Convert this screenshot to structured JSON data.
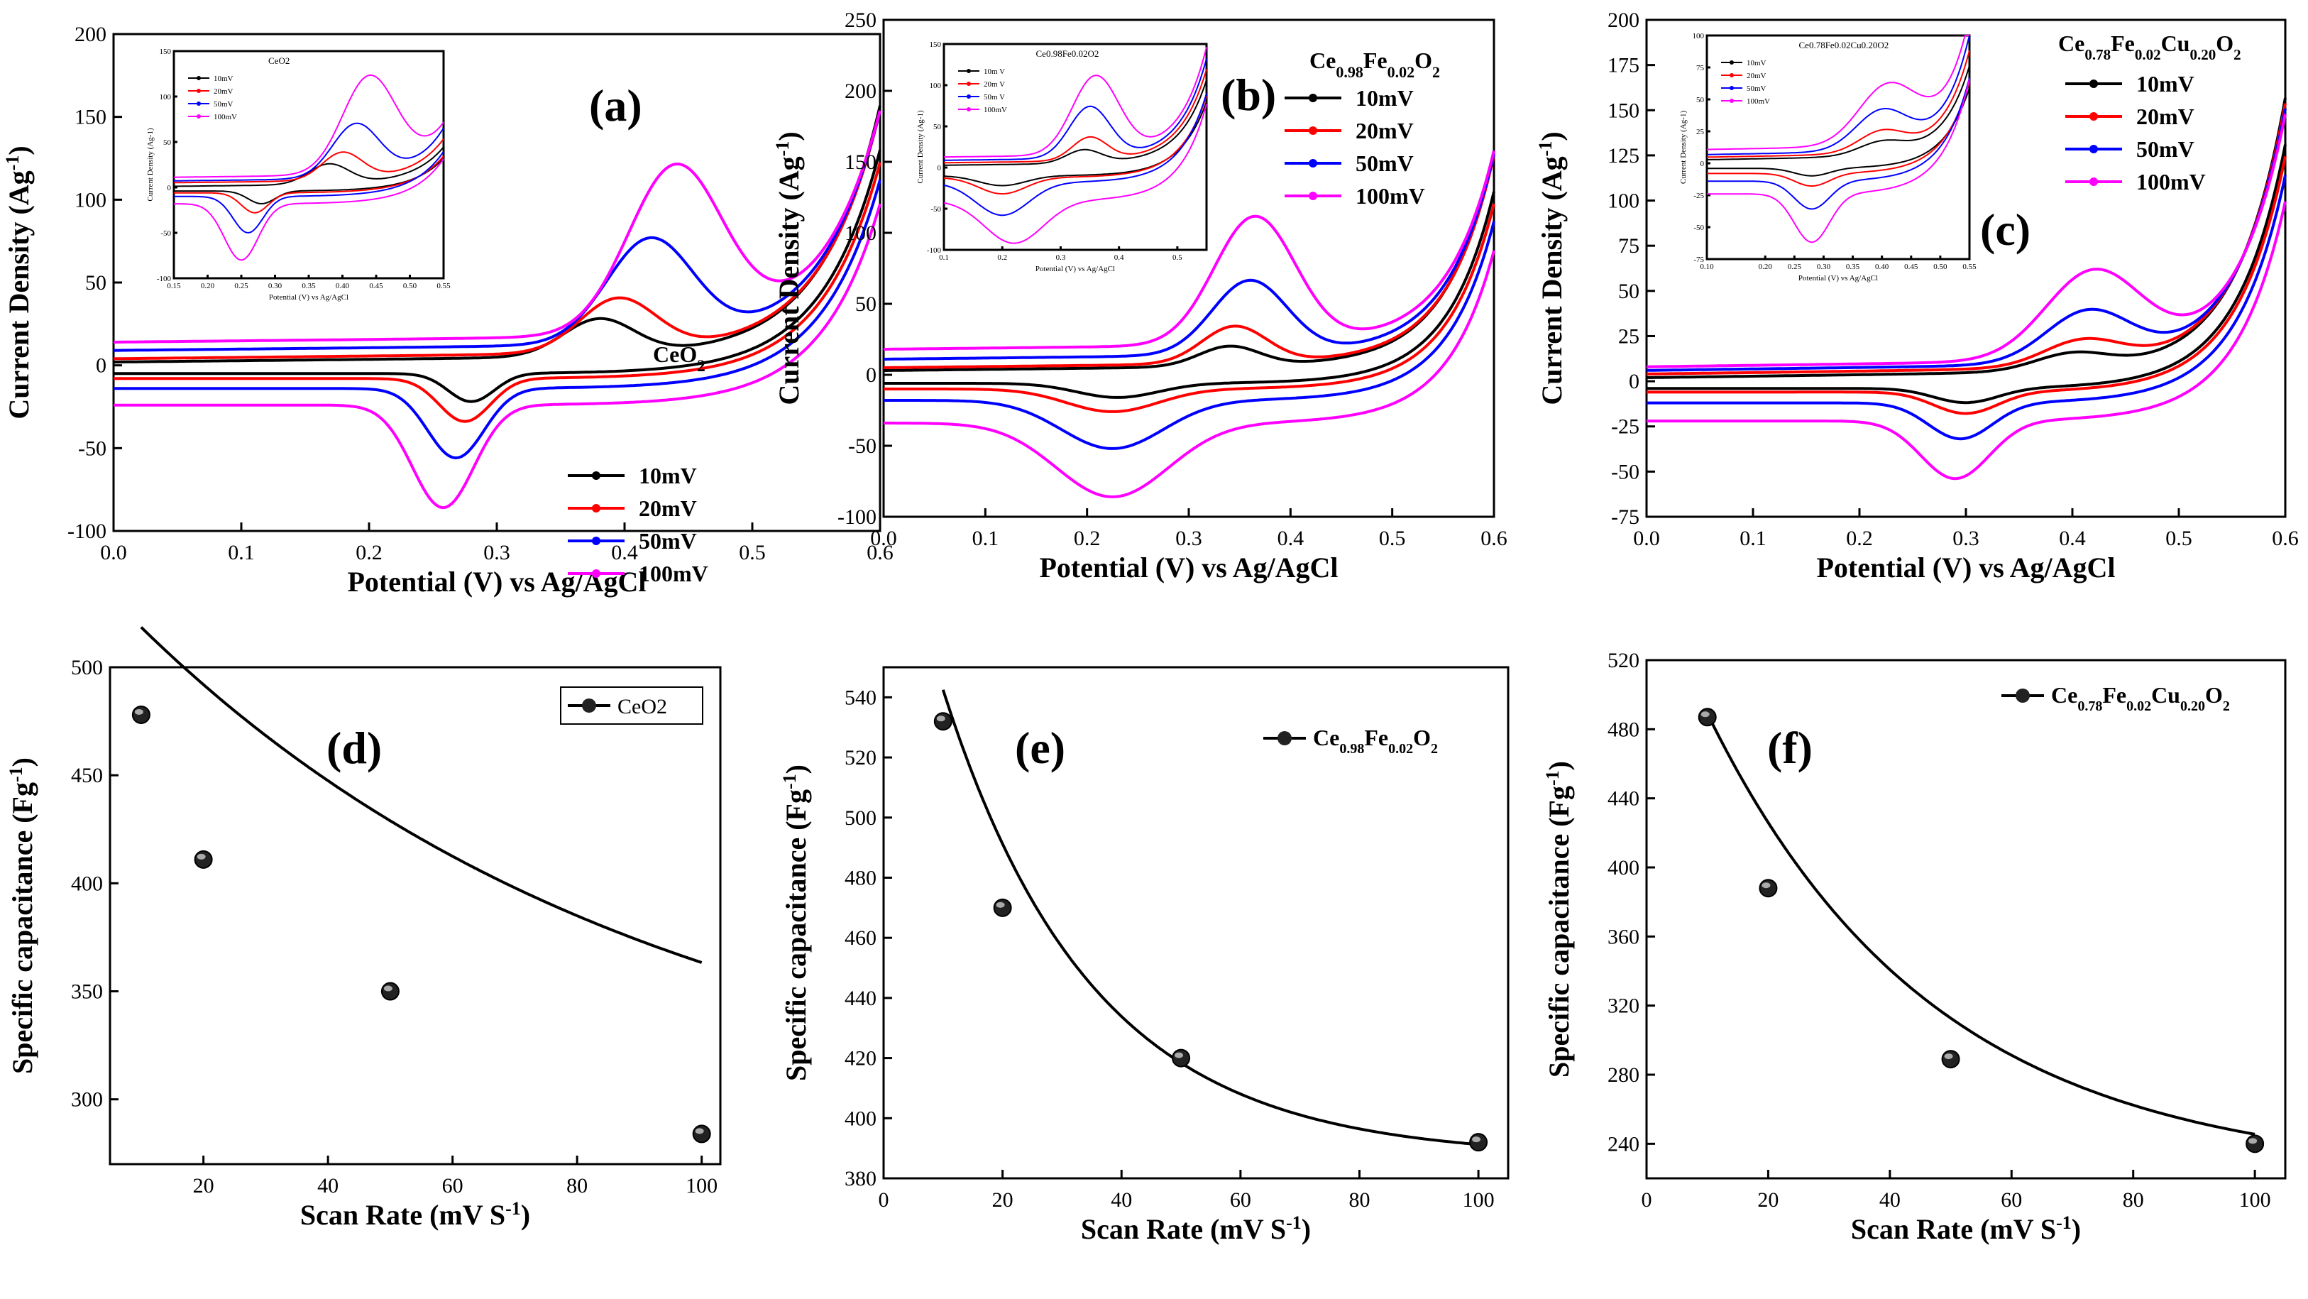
{
  "figure_title": "",
  "colors": {
    "10mV": "#000000",
    "20mV": "#ff0000",
    "50mV": "#0000ff",
    "100mV": "#ff00ff",
    "axis": "#000000"
  },
  "chart_data": [
    {
      "id": "a",
      "type": "line",
      "panel_label": "(a)",
      "material": "CeO",
      "material_sub": "2",
      "xlabel": "Potential (V) vs Ag/AgCl",
      "ylabel_main": "Current Density (Ag",
      "ylabel_sup": "-1",
      "ylabel_end": ")",
      "xlim": [
        0,
        0.6
      ],
      "ylim": [
        -100,
        200
      ],
      "xticks": [
        "0.0",
        "0.1",
        "0.2",
        "0.3",
        "0.4",
        "0.5",
        "0.6"
      ],
      "yticks": [
        "-100",
        "-50",
        "0",
        "50",
        "100",
        "150",
        "200"
      ],
      "series": [
        {
          "name": "10mV",
          "color": "#000000",
          "anodic_base": 2,
          "cathodic_base": -5,
          "redox": 0.22,
          "pox": [
            0.38,
            22,
            0.028
          ],
          "pred": [
            0.28,
            17,
            0.018
          ]
        },
        {
          "name": "20mV",
          "color": "#ff0000",
          "anodic_base": 4,
          "cathodic_base": -8,
          "redox": 0.35,
          "pox": [
            0.395,
            32,
            0.03
          ],
          "pred": [
            0.275,
            26,
            0.02
          ]
        },
        {
          "name": "50mV",
          "color": "#0000ff",
          "anodic_base": 9,
          "cathodic_base": -14,
          "redox": 0.6,
          "pox": [
            0.42,
            62,
            0.034
          ],
          "pred": [
            0.268,
            42,
            0.022
          ]
        },
        {
          "name": "100mV",
          "color": "#ff00ff",
          "anodic_base": 14,
          "cathodic_base": -24,
          "redox": 1.0,
          "pox": [
            0.44,
            100,
            0.037
          ],
          "pred": [
            0.258,
            62,
            0.024
          ]
        }
      ],
      "inset": {
        "title": "CeO2",
        "xlim": [
          0.15,
          0.55
        ],
        "ylim": [
          -100,
          150
        ],
        "xticks": [
          "0.15",
          "0.20",
          "0.25",
          "0.30",
          "0.35",
          "0.40",
          "0.45",
          "0.50",
          "0.55"
        ],
        "yticks": [
          "-100",
          "-50",
          "0",
          "50",
          "100",
          "150"
        ],
        "ylabel": "Current Density (Ag-1)",
        "xlabel": "Potential (V) vs Ag/AgCl",
        "legend": [
          "10mV",
          "20mV",
          "50mV",
          "100mV"
        ],
        "series": [
          {
            "name": "10mV",
            "color": "#000000",
            "anodic_base": 0,
            "cathodic_base": -4,
            "pox": [
              0.38,
              22,
              0.03
            ],
            "pred": [
              0.28,
              14,
              0.02
            ],
            "tail": [
              0.5,
              40
            ]
          },
          {
            "name": "20mV",
            "color": "#ff0000",
            "anodic_base": 4,
            "cathodic_base": -6,
            "pox": [
              0.4,
              30,
              0.03
            ],
            "pred": [
              0.27,
              22,
              0.02
            ],
            "tail": [
              0.5,
              45
            ]
          },
          {
            "name": "50mV",
            "color": "#0000ff",
            "anodic_base": 6,
            "cathodic_base": -10,
            "pox": [
              0.42,
              58,
              0.035
            ],
            "pred": [
              0.26,
              40,
              0.022
            ],
            "tail": [
              0.5,
              55
            ]
          },
          {
            "name": "100mV",
            "color": "#ff00ff",
            "anodic_base": 10,
            "cathodic_base": -18,
            "pox": [
              0.44,
              105,
              0.04
            ],
            "pred": [
              0.25,
              62,
              0.025
            ],
            "tail": [
              0.5,
              55
            ]
          }
        ]
      }
    },
    {
      "id": "b",
      "type": "line",
      "panel_label": "(b)",
      "material": "Ce",
      "material_sub1": "0.98",
      "material_mid": "Fe",
      "material_sub2": "0.02",
      "material_end": "O",
      "material_sub3": "2",
      "xlabel": "Potential (V) vs Ag/AgCl",
      "ylabel_main": "Current Density (Ag",
      "ylabel_sup": "-1",
      "ylabel_end": ")",
      "xlim": [
        0,
        0.6
      ],
      "ylim": [
        -100,
        250
      ],
      "xticks": [
        "0.0",
        "0.1",
        "0.2",
        "0.3",
        "0.4",
        "0.5",
        "0.6"
      ],
      "yticks": [
        "-100",
        "-50",
        "0",
        "50",
        "100",
        "150",
        "200",
        "250"
      ],
      "series": [
        {
          "name": "10mV",
          "color": "#000000",
          "anodic_base": 3,
          "cathodic_base": -6,
          "pox": [
            0.34,
            14,
            0.03
          ],
          "pred": [
            0.23,
            10,
            0.04
          ]
        },
        {
          "name": "20mV",
          "color": "#ff0000",
          "anodic_base": 5,
          "cathodic_base": -10,
          "pox": [
            0.345,
            26,
            0.032
          ],
          "pred": [
            0.225,
            16,
            0.045
          ]
        },
        {
          "name": "50mV",
          "color": "#0000ff",
          "anodic_base": 11,
          "cathodic_base": -18,
          "pox": [
            0.36,
            52,
            0.037
          ],
          "pred": [
            0.225,
            34,
            0.05
          ]
        },
        {
          "name": "100mV",
          "color": "#ff00ff",
          "anodic_base": 18,
          "cathodic_base": -34,
          "pox": [
            0.365,
            90,
            0.04
          ],
          "pred": [
            0.225,
            52,
            0.055
          ]
        }
      ],
      "inset": {
        "title": "Ce0.98Fe0.02O2",
        "xlim": [
          0.1,
          0.55
        ],
        "ylim": [
          -100,
          150
        ],
        "xticks": [
          "0.1",
          "0.2",
          "0.3",
          "0.4",
          "0.5"
        ],
        "yticks": [
          "-100",
          "-50",
          "0",
          "50",
          "100",
          "150"
        ],
        "ylabel": "Current Density (Ag-1)",
        "xlabel": "Potential (V) vs Ag/AgCl",
        "legend": [
          "10m V",
          "20m V",
          "50m V",
          "100mV"
        ],
        "series": [
          {
            "name": "10m V",
            "color": "#000000",
            "anodic_base": 2,
            "cathodic_base": -10,
            "pox": [
              0.34,
              16,
              0.03
            ],
            "pred": [
              0.2,
              12,
              0.04
            ],
            "tail": [
              0.5,
              100
            ]
          },
          {
            "name": "20m V",
            "color": "#ff0000",
            "anodic_base": 5,
            "cathodic_base": -12,
            "pox": [
              0.35,
              28,
              0.03
            ],
            "pred": [
              0.2,
              20,
              0.04
            ],
            "tail": [
              0.5,
              110
            ]
          },
          {
            "name": "50m V",
            "color": "#0000ff",
            "anodic_base": 8,
            "cathodic_base": -18,
            "pox": [
              0.35,
              62,
              0.035
            ],
            "pred": [
              0.2,
              40,
              0.045
            ],
            "tail": [
              0.5,
              120
            ]
          },
          {
            "name": "100mV",
            "color": "#ff00ff",
            "anodic_base": 12,
            "cathodic_base": -40,
            "pox": [
              0.36,
              95,
              0.04
            ],
            "pred": [
              0.22,
              52,
              0.05
            ],
            "tail": [
              0.5,
              130
            ]
          }
        ]
      }
    },
    {
      "id": "c",
      "type": "line",
      "panel_label": "(c)",
      "material": "Ce",
      "material_sub1": "0.78",
      "material_mid": "Fe",
      "material_sub2": "0.02",
      "material_mid2": "Cu",
      "material_sub4": "0.20",
      "material_end": "O",
      "material_sub3": "2",
      "xlabel": "Potential (V) vs Ag/AgCl",
      "ylabel_main": "Current Density (Ag",
      "ylabel_sup": "-1",
      "ylabel_end": ")",
      "xlim": [
        0,
        0.6
      ],
      "ylim": [
        -75,
        200
      ],
      "xticks": [
        "0.0",
        "0.1",
        "0.2",
        "0.3",
        "0.4",
        "0.5",
        "0.6"
      ],
      "yticks": [
        "-75",
        "-50",
        "-25",
        "0",
        "25",
        "50",
        "75",
        "100",
        "125",
        "150",
        "175",
        "200"
      ],
      "series": [
        {
          "name": "10mV",
          "color": "#000000",
          "anodic_base": 2,
          "cathodic_base": -4,
          "pox": [
            0.4,
            9,
            0.035
          ],
          "pred": [
            0.3,
            8,
            0.03
          ]
        },
        {
          "name": "20mV",
          "color": "#ff0000",
          "anodic_base": 4,
          "cathodic_base": -6,
          "pox": [
            0.41,
            14,
            0.037
          ],
          "pred": [
            0.3,
            12,
            0.03
          ]
        },
        {
          "name": "50mV",
          "color": "#0000ff",
          "anodic_base": 6,
          "cathodic_base": -12,
          "pox": [
            0.415,
            28,
            0.04
          ],
          "pred": [
            0.295,
            20,
            0.03
          ]
        },
        {
          "name": "100mV",
          "color": "#ff00ff",
          "anodic_base": 8,
          "cathodic_base": -22,
          "pox": [
            0.42,
            48,
            0.045
          ],
          "pred": [
            0.29,
            32,
            0.032
          ]
        }
      ],
      "inset": {
        "title": "Ce0.78Fe0.02Cu0.20O2",
        "xlim": [
          0.1,
          0.55
        ],
        "ylim": [
          -75,
          100
        ],
        "xticks": [
          "0.10",
          "0.20",
          "0.25",
          "0.30",
          "0.35",
          "0.40",
          "0.45",
          "0.50",
          "0.55"
        ],
        "yticks": [
          "-75",
          "-50",
          "-25",
          "0",
          "25",
          "50",
          "75",
          "100"
        ],
        "ylabel": "Current Density (Ag-1)",
        "xlabel": "Potential (V) vs Ag/AgCl",
        "legend": [
          "10mV",
          "20mV",
          "50mV",
          "100mV"
        ],
        "series": [
          {
            "name": "10mV",
            "color": "#000000",
            "anodic_base": 2,
            "cathodic_base": -4,
            "pox": [
              0.4,
              10,
              0.04
            ],
            "pred": [
              0.28,
              6,
              0.03
            ],
            "tail": [
              0.48,
              70
            ]
          },
          {
            "name": "20mV",
            "color": "#ff0000",
            "anodic_base": 4,
            "cathodic_base": -8,
            "pox": [
              0.4,
              16,
              0.04
            ],
            "pred": [
              0.28,
              10,
              0.03
            ],
            "tail": [
              0.48,
              80
            ]
          },
          {
            "name": "50mV",
            "color": "#0000ff",
            "anodic_base": 6,
            "cathodic_base": -14,
            "pox": [
              0.4,
              30,
              0.045
            ],
            "pred": [
              0.28,
              22,
              0.03
            ],
            "tail": [
              0.48,
              90
            ]
          },
          {
            "name": "100mV",
            "color": "#ff00ff",
            "anodic_base": 10,
            "cathodic_base": -24,
            "pox": [
              0.41,
              45,
              0.05
            ],
            "pred": [
              0.28,
              38,
              0.03
            ],
            "tail": [
              0.48,
              100
            ]
          }
        ]
      }
    },
    {
      "id": "d",
      "type": "scatter",
      "panel_label": "(d)",
      "legend": "CeO2",
      "xlabel_main": "Scan Rate (mV S",
      "xlabel_sup": "-1",
      "xlabel_end": ")",
      "ylabel_main": "Specific capacitance (Fg",
      "ylabel_sup": "-1",
      "ylabel_end": ")",
      "xlim": [
        5,
        103
      ],
      "ylim": [
        270,
        500
      ],
      "xticks": [
        "20",
        "40",
        "60",
        "80",
        "100"
      ],
      "yticks": [
        "300",
        "350",
        "400",
        "450",
        "500"
      ],
      "x": [
        10,
        20,
        50,
        100
      ],
      "y": [
        478,
        411,
        350,
        284
      ],
      "fit": {
        "a": 283.5,
        "b": 265,
        "k": 0.012
      }
    },
    {
      "id": "e",
      "type": "scatter",
      "panel_label": "(e)",
      "legend_main": "Ce",
      "legend_sub1": "0.98",
      "legend_mid": "Fe",
      "legend_sub2": "0.02",
      "legend_end": "O",
      "legend_sub3": "2",
      "xlabel_main": "Scan Rate (mV S",
      "xlabel_sup": "-1",
      "xlabel_end": ")",
      "ylabel_main": "Specific capacitance (Fg",
      "ylabel_sup": "-1",
      "ylabel_end": ")",
      "xlim": [
        0,
        105
      ],
      "ylim": [
        380,
        550
      ],
      "xticks": [
        "0",
        "20",
        "40",
        "60",
        "80",
        "100"
      ],
      "yticks": [
        "380",
        "400",
        "420",
        "440",
        "460",
        "480",
        "500",
        "520",
        "540"
      ],
      "x": [
        10,
        20,
        50,
        100
      ],
      "y": [
        532,
        470,
        420,
        392
      ],
      "fit": {
        "a": 387,
        "b": 232,
        "k": 0.04
      }
    },
    {
      "id": "f",
      "type": "scatter",
      "panel_label": "(f)",
      "legend_main": "Ce",
      "legend_sub1": "0.78",
      "legend_mid": "Fe",
      "legend_sub2": "0.02",
      "legend_mid2": "Cu",
      "legend_sub4": "0.20",
      "legend_end": "O",
      "legend_sub3": "2",
      "xlabel_main": "Scan Rate (mV S",
      "xlabel_sup": "-1",
      "xlabel_end": ")",
      "ylabel_main": "Specific capacitance (Fg",
      "ylabel_sup": "-1",
      "ylabel_end": ")",
      "xlim": [
        0,
        105
      ],
      "ylim": [
        220,
        520
      ],
      "xticks": [
        "0",
        "20",
        "40",
        "60",
        "80",
        "100"
      ],
      "yticks": [
        "240",
        "280",
        "320",
        "360",
        "400",
        "440",
        "480",
        "520"
      ],
      "x": [
        10,
        20,
        50,
        100
      ],
      "y": [
        487,
        388,
        289,
        240
      ],
      "fit": {
        "a": 222,
        "b": 350,
        "k": 0.027
      }
    }
  ]
}
